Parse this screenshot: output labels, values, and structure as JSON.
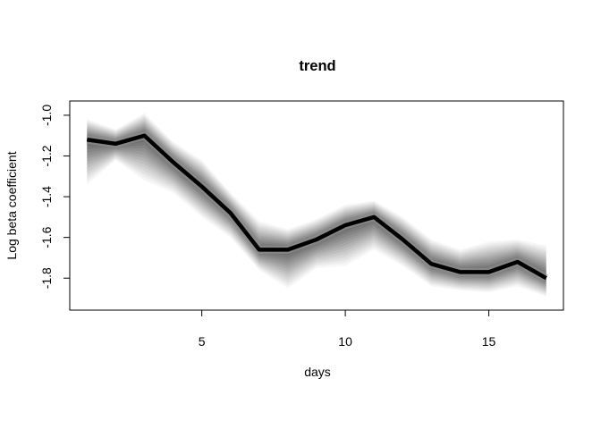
{
  "chart_data": {
    "type": "line",
    "title": "trend",
    "xlabel": "days",
    "ylabel": "Log beta coefficient",
    "xlim": [
      0.4,
      17.6
    ],
    "ylim": [
      -1.957,
      -0.93
    ],
    "x_ticks": [
      5,
      10,
      15
    ],
    "y_ticks": [
      -1.0,
      -1.2,
      -1.4,
      -1.6,
      -1.8
    ],
    "x_tick_labels": [
      "5",
      "10",
      "15"
    ],
    "y_tick_labels": [
      "-1.0",
      "-1.2",
      "-1.4",
      "-1.6",
      "-1.8"
    ],
    "grid": false,
    "legend": "none",
    "series": [
      {
        "x": [
          1,
          2,
          3,
          4,
          5,
          6,
          7,
          8,
          9,
          10,
          11,
          12,
          13,
          14,
          15,
          16,
          17
        ],
        "median": [
          -1.12,
          -1.14,
          -1.1,
          -1.23,
          -1.35,
          -1.48,
          -1.66,
          -1.66,
          -1.61,
          -1.54,
          -1.5,
          -1.61,
          -1.73,
          -1.77,
          -1.77,
          -1.72,
          -1.8
        ],
        "upper": [
          -1.02,
          -1.07,
          -0.99,
          -1.13,
          -1.22,
          -1.38,
          -1.52,
          -1.56,
          -1.51,
          -1.44,
          -1.42,
          -1.5,
          -1.61,
          -1.66,
          -1.62,
          -1.61,
          -1.64
        ],
        "lower": [
          -1.34,
          -1.22,
          -1.32,
          -1.38,
          -1.5,
          -1.6,
          -1.76,
          -1.85,
          -1.75,
          -1.74,
          -1.66,
          -1.74,
          -1.84,
          -1.86,
          -1.87,
          -1.84,
          -1.89
        ]
      }
    ],
    "colors": {
      "line": "#000000",
      "band": "#000000"
    }
  }
}
